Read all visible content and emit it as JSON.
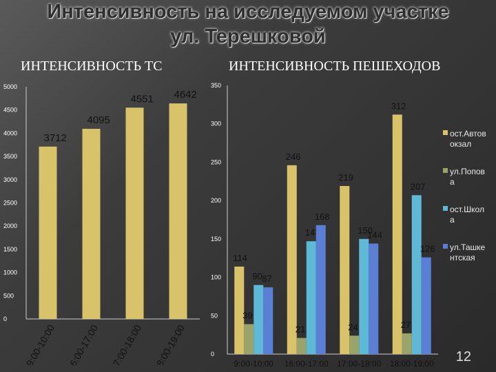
{
  "title_line1": "Интенсивность на исследуемом участке",
  "title_line2": "ул. Терешковой",
  "page_number": "12",
  "colors": {
    "gold": "#d9c36a",
    "olive": "#9aa36a",
    "cyan": "#5fb9d6",
    "blue": "#5b7fd4",
    "text": "#111111",
    "axis_text": "#ffffff"
  },
  "chart_data": [
    {
      "type": "bar",
      "title": "ИНТЕНСИВНОСТЬ ТС",
      "categories": [
        "9:00-10:00",
        "16:00-17:00",
        "17:00-18:00",
        "18:00-19:00"
      ],
      "values": [
        3712,
        4095,
        4551,
        4642
      ],
      "data_labels": [
        "3712",
        "4095",
        "4551",
        "4642"
      ],
      "ylim": [
        0,
        5000
      ],
      "yticks": [
        "0",
        "500",
        "1000",
        "1500",
        "2000",
        "2500",
        "3000",
        "3500",
        "4000",
        "4500",
        "5000"
      ],
      "grid": false
    },
    {
      "type": "bar",
      "title": "ИНТЕНСИВНОСТЬ ПЕШЕХОДОВ",
      "categories": [
        "9:00-10:00",
        "16:00-17:00",
        "17:00-18:00",
        "18:00-19:00"
      ],
      "series": [
        {
          "name": "ост.Автовокзал",
          "values": [
            114,
            246,
            219,
            312
          ],
          "labels": [
            "114",
            "246",
            "219",
            "312"
          ]
        },
        {
          "name": "ул.Попова",
          "values": [
            39,
            21,
            24,
            27
          ],
          "labels": [
            "39",
            "21",
            "24",
            "27"
          ]
        },
        {
          "name": "ост.Школа",
          "values": [
            90,
            147,
            150,
            207
          ],
          "labels": [
            "90",
            "147",
            "150",
            "207"
          ]
        },
        {
          "name": "ул.Ташкентская",
          "values": [
            87,
            168,
            144,
            126
          ],
          "labels": [
            "87",
            "168",
            "144",
            "126"
          ]
        }
      ],
      "ylim": [
        0,
        350
      ],
      "yticks": [
        "0",
        "50",
        "100",
        "150",
        "200",
        "250",
        "300",
        "350"
      ],
      "legend_position": "right",
      "legend_labels": [
        [
          "ост.Автов",
          "окзал"
        ],
        [
          "ул.Попов",
          "а"
        ],
        [
          "ост.Школ",
          "а"
        ],
        [
          "ул.Ташке",
          "нтская"
        ]
      ],
      "grid": false
    }
  ]
}
